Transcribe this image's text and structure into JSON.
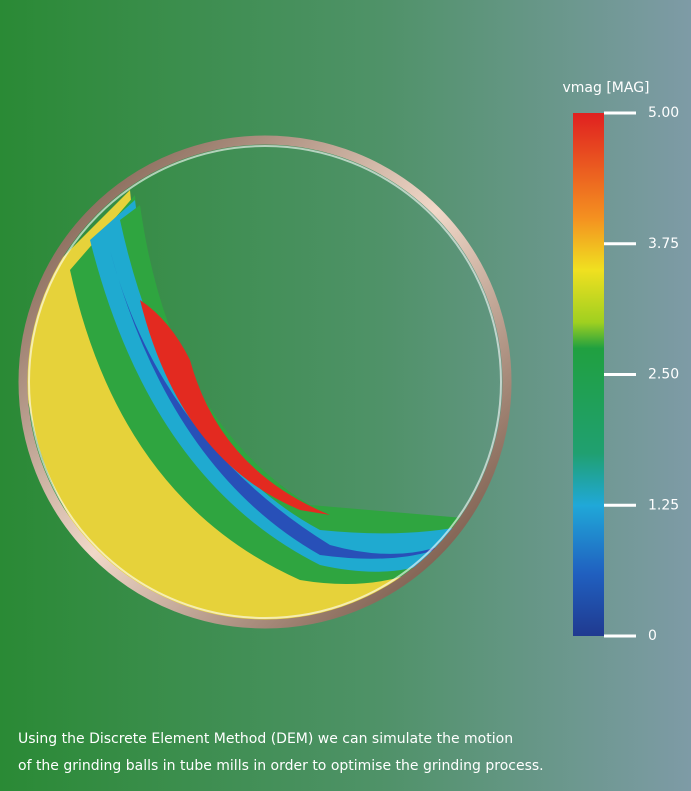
{
  "colorbar": {
    "label": "vmag [MAG]",
    "lim": [
      0,
      5
    ],
    "ticks": [
      {
        "value": 5,
        "label": "5.00"
      },
      {
        "value": 3.75,
        "label": "3.75"
      },
      {
        "value": 2.5,
        "label": "2.50"
      },
      {
        "value": 1.25,
        "label": "1.25"
      },
      0
    ]
  },
  "caption": {
    "lines": [
      "Using the Discrete Element Method (DEM) we can simulate the motion",
      "of the grinding balls in tube mills in order to optimise the grinding process."
    ]
  }
}
